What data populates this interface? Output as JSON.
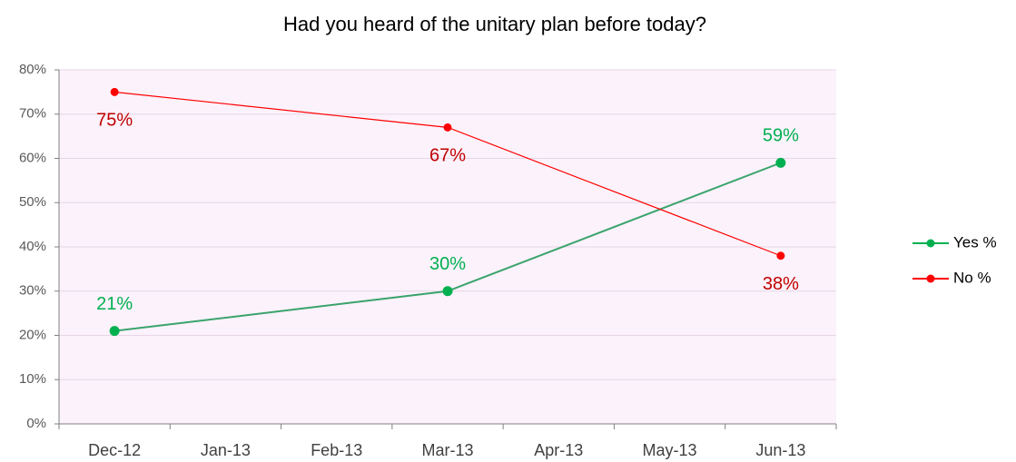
{
  "chart_data": {
    "type": "line",
    "title": "Had you heard of the unitary plan before today?",
    "categories": [
      "Dec-12",
      "Jan-13",
      "Feb-13",
      "Mar-13",
      "Apr-13",
      "May-13",
      "Jun-13"
    ],
    "series": [
      {
        "name": "Yes %",
        "color": "#00b050",
        "label_color": "#00b050",
        "x": [
          "Dec-12",
          "Mar-13",
          "Jun-13"
        ],
        "values": [
          21,
          30,
          59
        ],
        "value_labels": [
          "21%",
          "30%",
          "59%"
        ]
      },
      {
        "name": "No %",
        "color": "#ff0000",
        "label_color": "#c00000",
        "x": [
          "Dec-12",
          "Mar-13",
          "Jun-13"
        ],
        "values": [
          75,
          67,
          38
        ],
        "value_labels": [
          "75%",
          "67%",
          "38%"
        ]
      }
    ],
    "ylim": [
      0,
      80
    ],
    "yticks": [
      {
        "value": 0,
        "label": "0%"
      },
      {
        "value": 10,
        "label": "10%"
      },
      {
        "value": 20,
        "label": "20%"
      },
      {
        "value": 30,
        "label": "30%"
      },
      {
        "value": 40,
        "label": "40%"
      },
      {
        "value": 50,
        "label": "50%"
      },
      {
        "value": 60,
        "label": "60%"
      },
      {
        "value": 70,
        "label": "70%"
      },
      {
        "value": 80,
        "label": "80%"
      }
    ],
    "grid": true,
    "legend": "right"
  }
}
